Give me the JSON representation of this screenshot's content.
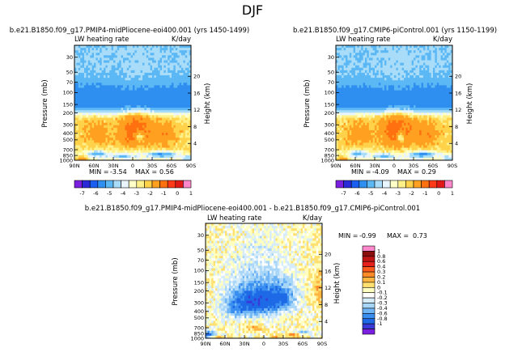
{
  "figure": {
    "title": "DJF"
  },
  "colors": {
    "main": [
      "#7a1fe0",
      "#2a2ad8",
      "#1a5ff0",
      "#2f8ff0",
      "#5cb8f5",
      "#a8dcf8",
      "#e8f5ff",
      "#ffffc8",
      "#fff08a",
      "#ffd24a",
      "#ffa020",
      "#ff7010",
      "#ff3a18",
      "#e01818",
      "#ff88cc"
    ],
    "diff": [
      "#7a1fe0",
      "#3a3ad8",
      "#1e6ae6",
      "#3a8ef0",
      "#6fb5f5",
      "#a8d6f8",
      "#d6ecfb",
      "#ffffff",
      "#ffffc0",
      "#ffe070",
      "#ffb640",
      "#ff8a28",
      "#ff5a1e",
      "#e6201a",
      "#c01414",
      "#8a0e0e",
      "#ff88cc"
    ]
  },
  "chart_data": [
    {
      "type": "heatmap",
      "title": "b.e21.B1850.f09_g17.PMIP4-midPliocene-eoi400.001 (yrs 1450-1499)",
      "left_label": "LW heating rate",
      "right_label": "K/day",
      "ylabel": "Pressure (mb)",
      "ylabel_right": "Height (km)",
      "xticks": [
        "90N",
        "60N",
        "30N",
        "0",
        "30S",
        "60S",
        "90S"
      ],
      "yticks": [
        "1000",
        "850",
        "700",
        "500",
        "400",
        "300",
        "200",
        "150",
        "100",
        "70",
        "50",
        "30"
      ],
      "height_ticks": [
        "4",
        "8",
        "12",
        "16",
        "20"
      ],
      "stats": {
        "min_label": "MIN =",
        "min": "-3.54",
        "max_label": "MAX =",
        "max": "0.56"
      },
      "colorbar_labels": [
        "-7",
        "-6",
        "-5",
        "-4",
        "-3",
        "-2",
        "-1",
        "0",
        "1"
      ],
      "range": [
        -7,
        1
      ]
    },
    {
      "type": "heatmap",
      "title": "b.e21.B1850.f09_g17.CMIP6-piControl.001 (yrs 1150-1199)",
      "left_label": "LW heating rate",
      "right_label": "K/day",
      "ylabel": "Pressure (mb)",
      "ylabel_right": "Height (km)",
      "xticks": [
        "90N",
        "60N",
        "30N",
        "0",
        "30S",
        "60S",
        "90S"
      ],
      "yticks": [
        "1000",
        "850",
        "700",
        "500",
        "400",
        "300",
        "200",
        "150",
        "100",
        "70",
        "50",
        "30"
      ],
      "height_ticks": [
        "4",
        "8",
        "12",
        "16",
        "20"
      ],
      "stats": {
        "min_label": "MIN =",
        "min": "-4.09",
        "max_label": "MAX =",
        "max": "0.29"
      },
      "colorbar_labels": [
        "-7",
        "-6",
        "-5",
        "-4",
        "-3",
        "-2",
        "-1",
        "0",
        "1"
      ],
      "range": [
        -7,
        1
      ]
    },
    {
      "type": "heatmap",
      "title": "b.e21.B1850.f09_g17.PMIP4-midPliocene-eoi400.001 - b.e21.B1850.f09_g17.CMIP6-piControl.001",
      "left_label": "LW heating rate",
      "right_label": "K/day",
      "ylabel": "Pressure (mb)",
      "ylabel_right": "Height (km)",
      "xticks": [
        "90N",
        "60N",
        "30N",
        "0",
        "30S",
        "60S",
        "90S"
      ],
      "yticks": [
        "1000",
        "850",
        "700",
        "500",
        "400",
        "300",
        "200",
        "150",
        "100",
        "70",
        "50",
        "30"
      ],
      "height_ticks": [
        "4",
        "8",
        "12",
        "16",
        "20"
      ],
      "stats": {
        "min_label": "MIN =",
        "min": "-0.99",
        "max_label": "MAX =",
        "max": "0.73"
      },
      "colorbar_labels": [
        "1",
        "0.8",
        "0.6",
        "0.4",
        "0.3",
        "0.2",
        "0.1",
        "0",
        "-0.1",
        "-0.2",
        "-0.3",
        "-0.4",
        "-0.6",
        "-0.8",
        "-1"
      ],
      "range": [
        -1,
        1
      ]
    }
  ]
}
